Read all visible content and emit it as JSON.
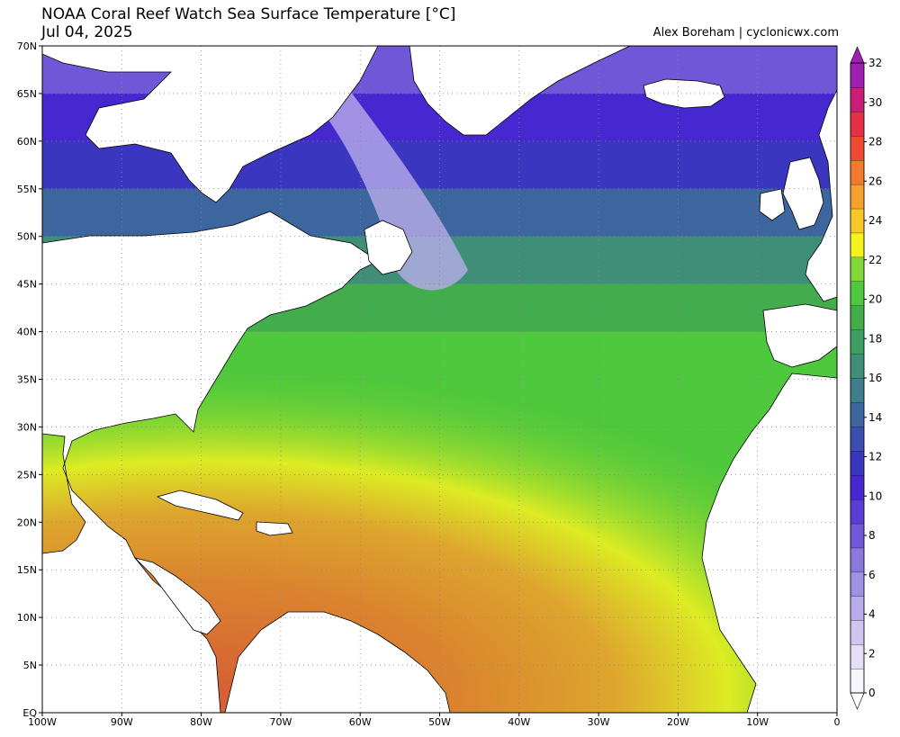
{
  "header": {
    "title": "NOAA Coral Reef Watch Sea Surface Temperature [°C]",
    "date": "Jul 04, 2025",
    "credit": "Alex Boreham | cyclonicwx.com"
  },
  "map": {
    "lon_range": [
      -100,
      0
    ],
    "lat_range": [
      0,
      70
    ],
    "lat_ticks": [
      {
        "value": 70,
        "label": "70N"
      },
      {
        "value": 65,
        "label": "65N"
      },
      {
        "value": 60,
        "label": "60N"
      },
      {
        "value": 55,
        "label": "55N"
      },
      {
        "value": 50,
        "label": "50N"
      },
      {
        "value": 45,
        "label": "45N"
      },
      {
        "value": 40,
        "label": "40N"
      },
      {
        "value": 35,
        "label": "35N"
      },
      {
        "value": 30,
        "label": "30N"
      },
      {
        "value": 25,
        "label": "25N"
      },
      {
        "value": 20,
        "label": "20N"
      },
      {
        "value": 15,
        "label": "15N"
      },
      {
        "value": 10,
        "label": "10N"
      },
      {
        "value": 5,
        "label": "5N"
      },
      {
        "value": 0,
        "label": "EQ"
      }
    ],
    "lon_ticks": [
      {
        "value": -100,
        "label": "100W"
      },
      {
        "value": -90,
        "label": "90W"
      },
      {
        "value": -80,
        "label": "80W"
      },
      {
        "value": -70,
        "label": "70W"
      },
      {
        "value": -60,
        "label": "60W"
      },
      {
        "value": -50,
        "label": "50W"
      },
      {
        "value": -40,
        "label": "40W"
      },
      {
        "value": -30,
        "label": "30W"
      },
      {
        "value": -20,
        "label": "20W"
      },
      {
        "value": -10,
        "label": "10W"
      },
      {
        "value": 0,
        "label": "0"
      }
    ],
    "colors": {
      "land": "#ffffff",
      "ocean_cold": "#3a2fd0",
      "ocean_warm": "#f07a30"
    }
  },
  "colorbar": {
    "min": 0,
    "max": 32,
    "tick_labels": [
      "0",
      "2",
      "4",
      "6",
      "8",
      "10",
      "12",
      "14",
      "16",
      "18",
      "20",
      "22",
      "24",
      "26",
      "28",
      "30",
      "32"
    ],
    "colors": [
      "#f6f4fc",
      "#e4dff7",
      "#cfc7f1",
      "#b8adea",
      "#a092e3",
      "#8a78dc",
      "#6f57d8",
      "#5a3dd6",
      "#4628d0",
      "#3a36c0",
      "#3b4fae",
      "#3c669d",
      "#3f7c8c",
      "#3f8f78",
      "#3f9f62",
      "#43ad4e",
      "#4ec83c",
      "#7fd836",
      "#f6f21f",
      "#f7c828",
      "#f7a02c",
      "#f37a2c",
      "#ee4a33",
      "#e63048",
      "#c81e7a",
      "#9e1fb0"
    ]
  }
}
